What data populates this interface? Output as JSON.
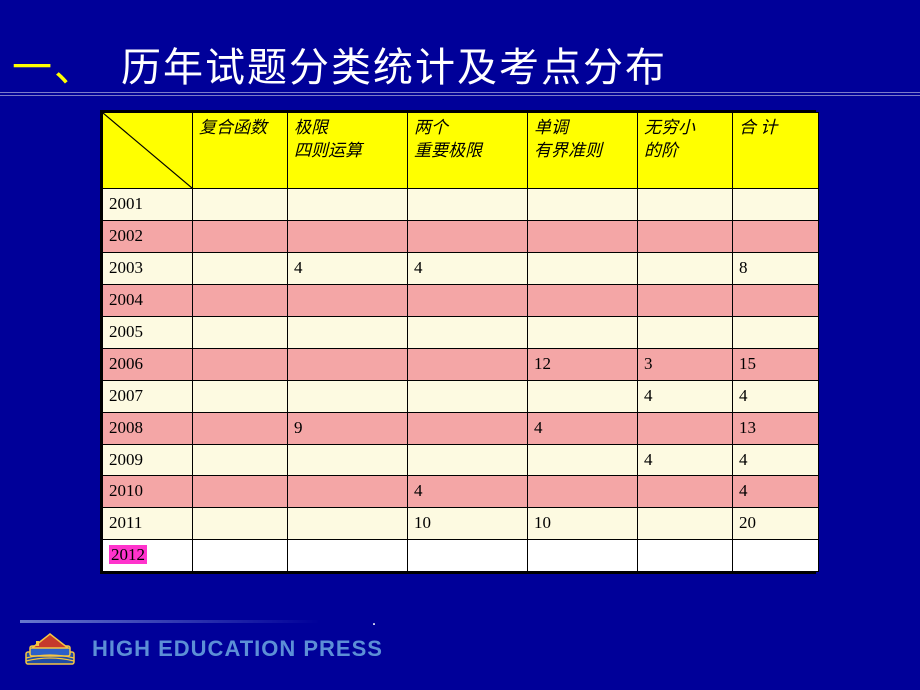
{
  "title": {
    "marker": "一、",
    "text": "历年试题分类统计及考点分布"
  },
  "table": {
    "columns": [
      "",
      "复合函数",
      "极限\n四则运算",
      "两个\n重要极限",
      "单调\n有界准则",
      "无穷小\n的阶",
      "合 计"
    ],
    "rows": [
      {
        "year": "2001",
        "cells": [
          "",
          "",
          "",
          "",
          "",
          ""
        ],
        "shade": "cream"
      },
      {
        "year": "2002",
        "cells": [
          "",
          "",
          "",
          "",
          "",
          ""
        ],
        "shade": "pink"
      },
      {
        "year": "2003",
        "cells": [
          "",
          "4",
          "4",
          "",
          "",
          "8"
        ],
        "shade": "cream"
      },
      {
        "year": "2004",
        "cells": [
          "",
          "",
          "",
          "",
          "",
          ""
        ],
        "shade": "pink"
      },
      {
        "year": "2005",
        "cells": [
          "",
          "",
          "",
          "",
          "",
          ""
        ],
        "shade": "cream"
      },
      {
        "year": "2006",
        "cells": [
          "",
          "",
          "",
          "12",
          "3",
          "15"
        ],
        "shade": "pink"
      },
      {
        "year": "2007",
        "cells": [
          "",
          "",
          "",
          "",
          "4",
          "4"
        ],
        "shade": "cream"
      },
      {
        "year": "2008",
        "cells": [
          "",
          "9",
          "",
          "4",
          "",
          "13"
        ],
        "shade": "pink"
      },
      {
        "year": "2009",
        "cells": [
          "",
          "",
          "",
          "",
          "4",
          "4"
        ],
        "shade": "cream"
      },
      {
        "year": "2010",
        "cells": [
          "",
          "",
          "4",
          "",
          "",
          "4"
        ],
        "shade": "pink"
      },
      {
        "year": "2011",
        "cells": [
          "",
          "",
          "10",
          "10",
          "",
          "20"
        ],
        "shade": "cream"
      },
      {
        "year": "2012",
        "cells": [
          "",
          "",
          "",
          "",
          "",
          ""
        ],
        "shade": "white",
        "highlight_year": true
      }
    ],
    "colors": {
      "header_bg": "#ffff00",
      "pink_bg": "#f4a6a6",
      "cream_bg": "#fdfae1",
      "white_bg": "#ffffff",
      "highlight_bg": "#ff33cc",
      "border": "#000000"
    }
  },
  "footer": {
    "press": "HIGH EDUCATION PRESS"
  }
}
